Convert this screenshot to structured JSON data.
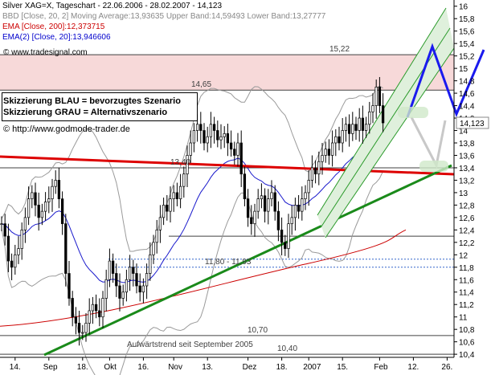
{
  "legend": {
    "line1": "Silver XAG=X, Tageschart - 22.06.2006 - 28.02.2007 - 14,123",
    "line2": "BBD [Close, 20, 2] Moving Average:13,93635 Upper Band:14,59493 Lower Band:13,27777",
    "line3": "EMA [Close, 200]:12,373715",
    "line4": "EMA(2) [Close, 20]:13,946606",
    "colors": {
      "ticker": "#000000",
      "bbd": "#888888",
      "ema200": "#cc0000",
      "ema20": "#0000cc"
    }
  },
  "watermark": "© www.tradesignal.com",
  "scenario_box": {
    "blue": "Skizzierung BLAU = bevorzugtes Szenario",
    "gray": "Skizzierung GRAU = Alternativszenario"
  },
  "website": "© http://www.godmode-trader.de",
  "chart_data": {
    "type": "candlestick",
    "title": "Silver XAG=X, Tageschart - 22.06.2006 - 28.02.2007 - 14,123",
    "ylim": [
      10.35,
      16.1
    ],
    "y_ticks": [
      "16",
      "15,8",
      "15,6",
      "15,4",
      "15,2",
      "15",
      "14,8",
      "14,6",
      "14,4",
      "14,2",
      "14",
      "13,8",
      "13,6",
      "13,4",
      "13,2",
      "13",
      "12,8",
      "12,6",
      "12,4",
      "12,2",
      "12",
      "11,8",
      "11,6",
      "11,4",
      "11,2",
      "11",
      "10,8",
      "10,6",
      "10,4"
    ],
    "y_tick_values": [
      16,
      15.8,
      15.6,
      15.4,
      15.2,
      15,
      14.8,
      14.6,
      14.4,
      14.2,
      14,
      13.8,
      13.6,
      13.4,
      13.2,
      13,
      12.8,
      12.6,
      12.4,
      12.2,
      12,
      11.8,
      11.6,
      11.4,
      11.2,
      11,
      10.8,
      10.6,
      10.4
    ],
    "x_ticks": [
      "14.",
      "Sep",
      "18.",
      "Okt",
      "16.",
      "Nov",
      "13.",
      "Dez",
      "18.",
      "2007",
      "15.",
      "Feb",
      "12.",
      "26."
    ],
    "x_tick_index": [
      4,
      14,
      24,
      32,
      42,
      51,
      61,
      73,
      83,
      91,
      101,
      112,
      122,
      132
    ],
    "last_price": "14,123",
    "resistance_zone": [
      14.65,
      15.22
    ],
    "levels": [
      {
        "label": "15,22",
        "value": 15.22
      },
      {
        "label": "14,65",
        "value": 14.65
      },
      {
        "label": "13,40",
        "value": 13.4
      },
      {
        "label": "11,80 - 11,93",
        "value": 11.8
      },
      {
        "label": "10,70",
        "value": 10.7
      },
      {
        "label": "10,40",
        "value": 10.4
      }
    ],
    "annotations": {
      "uptrend": "Aufwärtstrend seit September 2005"
    },
    "close": [
      12.5,
      12.3,
      11.9,
      11.8,
      12.0,
      12.1,
      12.4,
      12.6,
      12.9,
      13.0,
      12.8,
      12.6,
      12.7,
      12.85,
      12.9,
      13.1,
      13.2,
      12.9,
      12.5,
      11.7,
      11.3,
      11.0,
      10.9,
      10.75,
      10.75,
      10.9,
      11.1,
      11.2,
      11.1,
      11.0,
      11.3,
      11.6,
      11.9,
      11.7,
      11.5,
      11.3,
      11.4,
      11.6,
      11.8,
      11.7,
      11.5,
      11.4,
      11.5,
      11.7,
      12.0,
      12.2,
      12.4,
      12.6,
      12.8,
      12.7,
      12.9,
      13.0,
      12.9,
      13.1,
      13.3,
      13.6,
      13.8,
      14.0,
      14.1,
      14.0,
      13.8,
      13.9,
      14.1,
      14.0,
      13.85,
      13.9,
      13.95,
      13.8,
      13.7,
      13.6,
      13.8,
      13.3,
      12.9,
      12.6,
      12.5,
      12.7,
      12.9,
      12.95,
      12.7,
      12.9,
      13.0,
      12.7,
      12.4,
      12.2,
      12.1,
      12.5,
      12.6,
      12.8,
      12.7,
      12.9,
      13.0,
      13.2,
      13.4,
      13.3,
      13.5,
      13.6,
      13.7,
      13.6,
      13.8,
      13.9,
      13.8,
      14.0,
      14.1,
      13.95,
      14.1,
      14.0,
      14.2,
      14.0,
      14.1,
      14.3,
      14.4,
      14.7,
      14.4,
      14.123
    ]
  }
}
